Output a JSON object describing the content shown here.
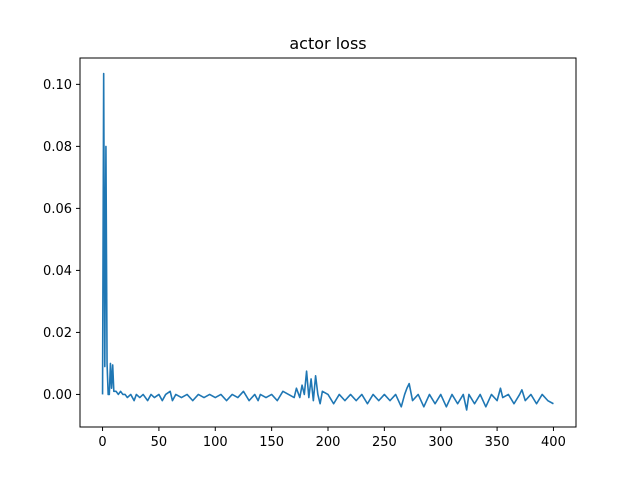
{
  "chart_data": {
    "type": "line",
    "title": "actor loss",
    "xlabel": "",
    "ylabel": "",
    "xlim": [
      -20,
      420
    ],
    "ylim": [
      -0.0105,
      0.1085
    ],
    "xticks": [
      0,
      50,
      100,
      150,
      200,
      250,
      300,
      350,
      400
    ],
    "yticks": [
      0.0,
      0.02,
      0.04,
      0.06,
      0.08,
      0.1
    ],
    "ytick_labels": [
      "0.00",
      "0.02",
      "0.04",
      "0.06",
      "0.08",
      "0.10"
    ],
    "grid": false,
    "series": [
      {
        "color": "#1f77b4",
        "x": [
          0,
          1,
          2,
          3,
          4,
          5,
          6,
          7,
          8,
          9,
          10,
          12,
          14,
          16,
          18,
          20,
          22,
          25,
          28,
          30,
          33,
          36,
          40,
          43,
          46,
          50,
          53,
          56,
          60,
          62,
          65,
          70,
          75,
          80,
          85,
          90,
          95,
          100,
          105,
          110,
          115,
          120,
          125,
          130,
          135,
          138,
          140,
          145,
          150,
          155,
          160,
          165,
          170,
          172,
          175,
          177,
          179,
          181,
          183,
          185,
          187,
          189,
          191,
          193,
          195,
          200,
          205,
          210,
          215,
          220,
          225,
          230,
          235,
          240,
          245,
          250,
          255,
          260,
          265,
          268,
          270,
          272,
          275,
          280,
          285,
          290,
          295,
          300,
          305,
          310,
          315,
          320,
          323,
          325,
          330,
          335,
          340,
          345,
          350,
          353,
          355,
          360,
          365,
          370,
          372,
          375,
          380,
          385,
          390,
          395,
          400
        ],
        "y": [
          0.0,
          0.1035,
          0.009,
          0.08,
          0.01,
          0.0,
          0.0,
          0.01,
          0.002,
          0.0095,
          0.001,
          0.001,
          0.0,
          0.001,
          0.0,
          0.0,
          -0.001,
          0.0,
          -0.002,
          0.0,
          -0.001,
          0.0,
          -0.002,
          0.0,
          -0.001,
          0.0,
          -0.002,
          0.0,
          0.001,
          -0.002,
          0.0,
          -0.001,
          0.0,
          -0.002,
          0.0,
          -0.001,
          0.0,
          -0.001,
          0.0,
          -0.002,
          0.0,
          -0.001,
          0.001,
          -0.002,
          0.0,
          -0.002,
          0.0,
          -0.001,
          0.0,
          -0.002,
          0.001,
          0.0,
          -0.001,
          0.002,
          -0.001,
          0.003,
          0.0,
          0.0075,
          -0.001,
          0.005,
          -0.002,
          0.006,
          0.0,
          -0.003,
          0.001,
          0.0,
          -0.003,
          0.0,
          -0.002,
          0.0,
          -0.002,
          0.0,
          -0.003,
          0.0,
          -0.002,
          0.0,
          -0.002,
          0.0,
          -0.004,
          0.0,
          0.002,
          0.0035,
          -0.002,
          0.0,
          -0.004,
          0.0,
          -0.003,
          0.0,
          -0.004,
          0.0,
          -0.003,
          0.0,
          -0.005,
          0.0,
          -0.003,
          0.0,
          -0.004,
          0.0,
          -0.002,
          0.002,
          -0.001,
          0.0,
          -0.003,
          0.0,
          0.0015,
          -0.002,
          0.0,
          -0.003,
          0.0,
          -0.002,
          -0.003
        ]
      }
    ]
  }
}
